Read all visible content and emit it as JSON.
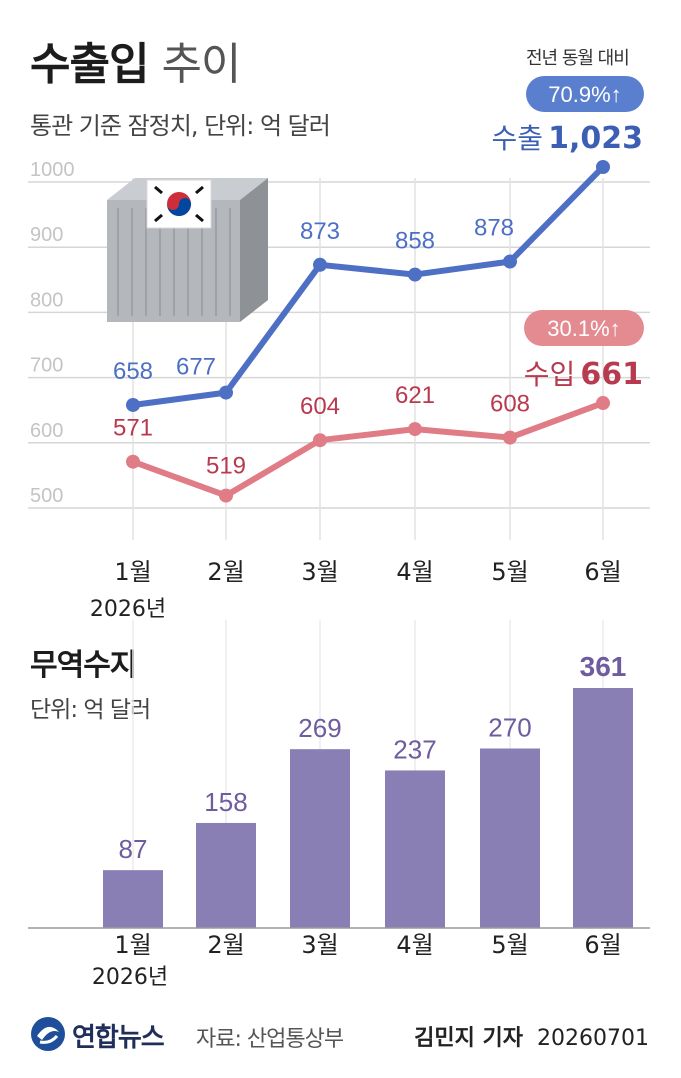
{
  "header": {
    "title_bold": "수출입",
    "title_light": "추이",
    "subtitle": "통관 기준 잠정치, 단위: 억 달러",
    "yoy_caption": "전년 동월 대비"
  },
  "line_chart": {
    "export_label": "수출",
    "export_value": "1,023",
    "export_yoy": "70.9%↑",
    "import_label": "수입",
    "import_value": "661",
    "import_yoy": "30.1%↑",
    "x_year": "2026년"
  },
  "bar_section": {
    "title": "무역수지",
    "subtitle": "단위: 억 달러",
    "x_year": "2026년"
  },
  "footer": {
    "brand": "연합뉴스",
    "source": "자료: 산업통상부",
    "reporter": "김민지 기자",
    "date": "20260701"
  },
  "colors": {
    "export": "#4d6fc4",
    "export_pill": "#5b7fcf",
    "import": "#e07c86",
    "import_text": "#b83a4f",
    "import_pill": "#e48b92",
    "bar": "#8a7fb5",
    "bar_label": "#6e5c9f"
  },
  "chart_data": [
    {
      "type": "line",
      "categories": [
        "1월",
        "2월",
        "3월",
        "4월",
        "5월",
        "6월"
      ],
      "series": [
        {
          "values": [
            658,
            677,
            873,
            858,
            878,
            1023
          ]
        },
        {
          "values": [
            571,
            519,
            604,
            621,
            608,
            661
          ]
        }
      ],
      "ylim": [
        500,
        1000
      ],
      "yticks": [
        500,
        600,
        700,
        800,
        900,
        1000
      ],
      "grid": true
    },
    {
      "type": "bar",
      "categories": [
        "1월",
        "2월",
        "3월",
        "4월",
        "5월",
        "6월"
      ],
      "values": [
        87,
        158,
        269,
        237,
        270,
        361
      ],
      "ylim": [
        0,
        361
      ]
    }
  ]
}
